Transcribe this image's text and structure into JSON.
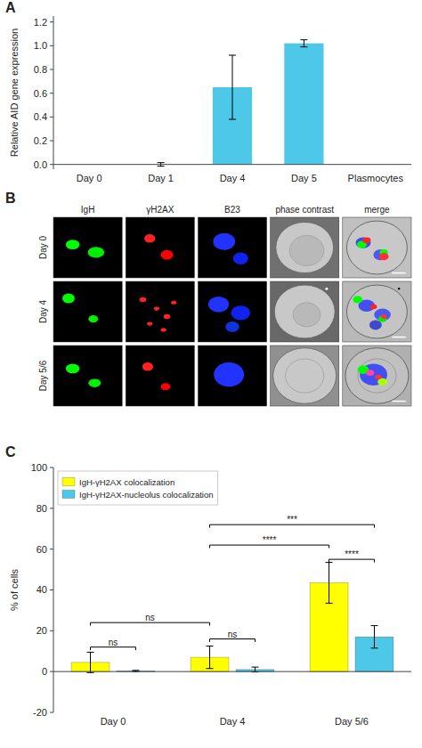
{
  "chart_data": [
    {
      "type": "bar",
      "title": "A",
      "categories": [
        "Day 0",
        "Day 1",
        "Day 4",
        "Day 5",
        "Plasmocytes"
      ],
      "values": [
        0.0,
        0.0,
        0.65,
        1.02,
        0.0
      ],
      "errors": [
        0.0,
        0.015,
        0.27,
        0.03,
        0.0
      ],
      "color": "#4DC8E8",
      "ylabel": "Relative AID gene expression",
      "ylim": [
        -0.04,
        1.25
      ],
      "yticks": [
        {
          "value": 0,
          "label": "0.0"
        },
        0.2,
        0.4,
        0.6,
        0.8,
        {
          "value": 1.0,
          "label": "1.0"
        },
        1.2
      ],
      "grid": false
    },
    {
      "type": "image_grid",
      "title": "B",
      "columns": [
        "IgH",
        "γH2AX",
        "B23",
        "phase contrast",
        "merge"
      ],
      "rows": [
        "Day 0",
        "Day 4",
        "Day 5/6"
      ]
    },
    {
      "type": "bar",
      "title": "C",
      "categories": [
        "Day 0",
        "Day 4",
        "Day 5/6"
      ],
      "series": [
        {
          "name": "IgH-γH2AX colocalization",
          "color": "#FFFF00",
          "values": [
            4.5,
            7.0,
            43.5
          ],
          "errors": [
            5.0,
            5.5,
            10.0
          ]
        },
        {
          "name": "IgH-γH2AX-nucleolus colocalization",
          "color": "#4DC8E8",
          "values": [
            0.3,
            1.0,
            17.0
          ],
          "errors": [
            0.3,
            1.2,
            5.5
          ]
        }
      ],
      "ylabel": "% of cells",
      "ylim": [
        -20,
        100
      ],
      "yticks": [
        -20,
        0,
        20,
        40,
        60,
        80,
        100
      ],
      "legend": "upper left",
      "grid": false,
      "annotations": [
        {
          "label": "ns",
          "y": 12,
          "from": {
            "series": 0,
            "category": 0
          },
          "to": {
            "series": 1,
            "category": 0
          }
        },
        {
          "label": "ns",
          "y": 16,
          "from": {
            "series": 0,
            "category": 1
          },
          "to": {
            "series": 1,
            "category": 1
          }
        },
        {
          "label": "ns",
          "y": 24,
          "from": {
            "series": 0,
            "category": 0
          },
          "to": {
            "series": 0,
            "category": 1
          }
        },
        {
          "label": "****",
          "y": 62,
          "from": {
            "series": 0,
            "category": 1
          },
          "to": {
            "series": 0,
            "category": 2
          }
        },
        {
          "label": "***",
          "y": 72,
          "from": {
            "series": 0,
            "category": 1
          },
          "to": {
            "series": 1,
            "category": 2
          }
        },
        {
          "label": "****",
          "y": 55,
          "from": {
            "series": 0,
            "category": 2
          },
          "to": {
            "series": 1,
            "category": 2
          }
        }
      ]
    }
  ]
}
